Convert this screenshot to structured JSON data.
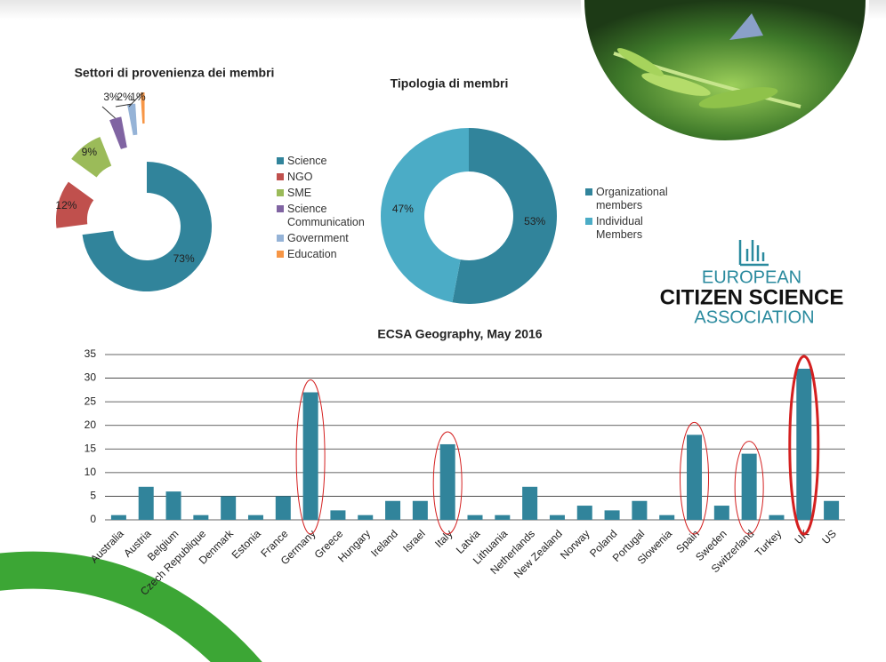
{
  "chart_data": [
    {
      "type": "pie",
      "title": "Settori di provenienza dei membri",
      "explode": true,
      "categories": [
        "Science",
        "NGO",
        "SME",
        "Science Communication",
        "Government",
        "Education"
      ],
      "values": [
        73,
        12,
        9,
        3,
        2,
        1
      ],
      "value_labels": [
        "73%",
        "12%",
        "9%",
        "3%",
        "2%",
        "1%"
      ],
      "colors": [
        "#31849b",
        "#c0504d",
        "#9bbb59",
        "#8064a2",
        "#95b3d7",
        "#f79646"
      ]
    },
    {
      "type": "pie",
      "title": "Tipologia di membri",
      "explode": false,
      "categories": [
        "Organizational members",
        "Individual Members"
      ],
      "values": [
        53,
        47
      ],
      "value_labels": [
        "53%",
        "47%"
      ],
      "colors": [
        "#31849b",
        "#4bacc6"
      ]
    },
    {
      "type": "bar",
      "title": "ECSA Geography, May 2016",
      "color": "#31849b",
      "categories": [
        "Australia",
        "Austria",
        "Belgium",
        "Czech Republique",
        "Denmark",
        "Estonia",
        "France",
        "Germany",
        "Greece",
        "Hungary",
        "Ireland",
        "Israel",
        "Italy",
        "Latvia",
        "Lithuania",
        "Netherlands",
        "New Zealand",
        "Norway",
        "Poland",
        "Portugal",
        "Slowenia",
        "Spain",
        "Sweden",
        "Switzerland",
        "Turkey",
        "UK",
        "US"
      ],
      "values": [
        1,
        7,
        6,
        1,
        5,
        1,
        5,
        27,
        2,
        1,
        4,
        4,
        16,
        1,
        1,
        7,
        1,
        3,
        2,
        4,
        1,
        18,
        3,
        14,
        1,
        32,
        4
      ],
      "ylim": [
        0,
        35
      ],
      "yticks": [
        0,
        5,
        10,
        15,
        20,
        25,
        30,
        35
      ],
      "grid": true
    }
  ],
  "logo": {
    "line1": "EUROPEAN",
    "line2": "CITIZEN SCIENCE",
    "line3": "ASSOCIATION"
  }
}
